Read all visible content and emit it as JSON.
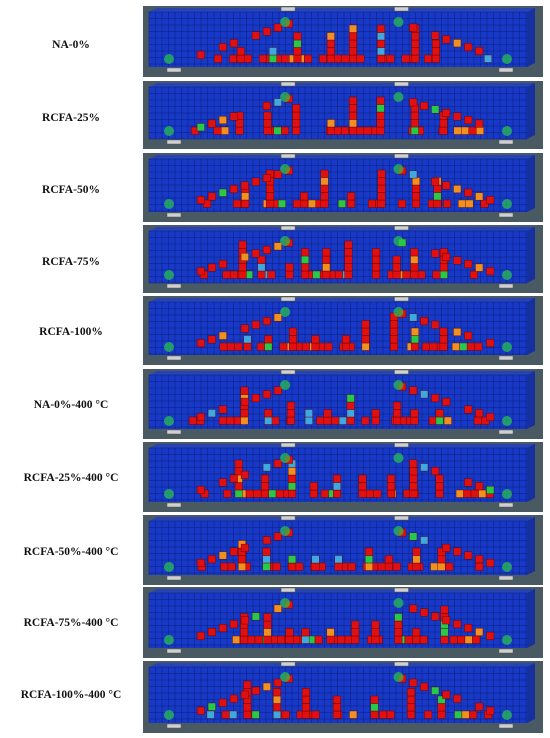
{
  "rows": [
    {
      "label": "NA-0%"
    },
    {
      "label": "RCFA-25%"
    },
    {
      "label": "RCFA-50%"
    },
    {
      "label": "RCFA-75%"
    },
    {
      "label": "RCFA-100%"
    },
    {
      "label": "NA-0%-400 °C"
    },
    {
      "label": "RCFA-25%-400 °C"
    },
    {
      "label": "RCFA-50%-400 °C"
    },
    {
      "label": "RCFA-75%-400 °C"
    },
    {
      "label": "RCFA-100%-400 °C"
    }
  ],
  "colors": {
    "beam_face": "#1838c8",
    "beam_top": "#2844b4",
    "grid_line": "#0b1f7a",
    "panel_bg": "#4a5a63",
    "damage_high": "#e01010",
    "damage_mid": "#f09020",
    "damage_low": "#28c848",
    "damage_min": "#40a8e0",
    "support_plate": "#d0d0d0"
  }
}
